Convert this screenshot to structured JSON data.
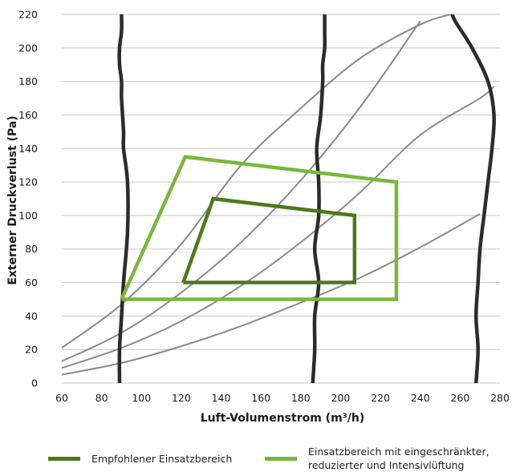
{
  "chart_data": {
    "type": "line",
    "xlabel": "Luft-Volumenstrom (m³/h)",
    "ylabel": "Externer Druckverlust (Pa)",
    "xlim": [
      60,
      280
    ],
    "ylim": [
      0,
      220
    ],
    "xticks": [
      60,
      80,
      100,
      120,
      140,
      160,
      180,
      200,
      220,
      240,
      260,
      280
    ],
    "yticks": [
      0,
      20,
      40,
      60,
      80,
      100,
      120,
      140,
      160,
      180,
      200,
      220
    ],
    "grid": "horizontal",
    "legend_position": "bottom",
    "system_curves": [
      {
        "x": [
          60,
          90,
          120,
          150,
          180,
          210,
          240,
          255
        ],
        "y": [
          21,
          47,
          83,
          130,
          164,
          194,
          214,
          220
        ]
      },
      {
        "x": [
          60,
          90,
          120,
          150,
          180,
          210,
          240
        ],
        "y": [
          13,
          30,
          54,
          84,
          121,
          165,
          216
        ]
      },
      {
        "x": [
          60,
          90,
          120,
          150,
          180,
          210,
          240,
          270,
          277
        ],
        "y": [
          9,
          21,
          37,
          58,
          84,
          114,
          148,
          170,
          177
        ]
      },
      {
        "x": [
          60,
          90,
          120,
          150,
          180,
          210,
          240,
          270
        ],
        "y": [
          5,
          12,
          22,
          34,
          48,
          63,
          81,
          101
        ]
      }
    ],
    "fan_curves": [
      {
        "x": [
          89,
          89,
          90,
          91,
          93,
          93,
          91,
          91,
          90,
          90,
          89,
          89,
          90,
          90
        ],
        "y": [
          0,
          20,
          40,
          60,
          90,
          120,
          140,
          150,
          170,
          180,
          190,
          200,
          210,
          220
        ]
      },
      {
        "x": [
          186,
          187,
          187,
          189,
          187,
          189,
          189,
          188,
          190,
          191,
          191,
          192,
          192,
          192
        ],
        "y": [
          0,
          20,
          40,
          60,
          80,
          100,
          120,
          140,
          160,
          180,
          190,
          200,
          210,
          220
        ]
      },
      {
        "x": [
          268,
          269,
          268,
          269,
          270,
          272,
          274,
          276,
          277,
          274,
          266,
          258,
          256
        ],
        "y": [
          0,
          20,
          40,
          60,
          80,
          100,
          120,
          140,
          160,
          180,
          200,
          215,
          220
        ]
      }
    ],
    "series": [
      {
        "name": "Empfohlener Einsatzbereich",
        "color": "#4a7a1c",
        "x": [
          121,
          136,
          207,
          207,
          121
        ],
        "y": [
          60,
          110,
          100,
          60,
          60
        ]
      },
      {
        "name": "Einsatzbereich mit eingeschränkter, reduzierter und Intensivlüftung",
        "color": "#78b83a",
        "x": [
          90,
          122,
          228,
          228,
          90
        ],
        "y": [
          50,
          135,
          120,
          50,
          50
        ]
      }
    ],
    "legend": [
      "Empfohlener Einsatzbereich",
      "Einsatzbereich mit eingeschränkter, reduzierter und Intensivlüftung"
    ],
    "colors": {
      "grid": "#c8c8c8",
      "system_curve": "#8a8a8a",
      "fan_curve": "#2b2b2b",
      "recommended": "#4a7a1c",
      "extended": "#78b83a"
    }
  }
}
